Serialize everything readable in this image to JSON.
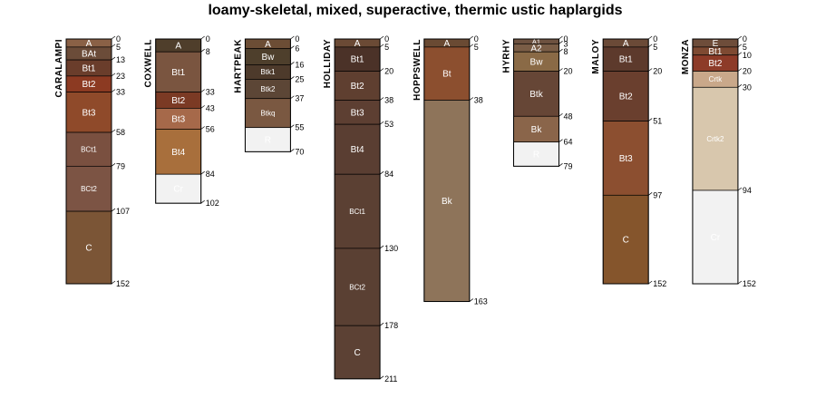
{
  "title": "loamy-skeletal, mixed, superactive, thermic ustic haplargids",
  "chart_data": {
    "type": "soil_profile_sketch",
    "title": "loamy-skeletal, mixed, superactive, thermic ustic haplargids",
    "depth_units": "cm",
    "profiles": [
      {
        "name": "CARALAMPI",
        "horizons": [
          {
            "name": "A",
            "top": 0,
            "bottom": 5,
            "color": "#8a6146"
          },
          {
            "name": "BAt",
            "top": 5,
            "bottom": 13,
            "color": "#6b4c39"
          },
          {
            "name": "Bt1",
            "top": 13,
            "bottom": 23,
            "color": "#6a3d2b"
          },
          {
            "name": "Bt2",
            "top": 23,
            "bottom": 33,
            "color": "#8c3a22"
          },
          {
            "name": "Bt3",
            "top": 33,
            "bottom": 58,
            "color": "#8f4a2a"
          },
          {
            "name": "BCt1",
            "top": 58,
            "bottom": 79,
            "color": "#7a5040"
          },
          {
            "name": "BCt2",
            "top": 79,
            "bottom": 107,
            "color": "#7c5444"
          },
          {
            "name": "C",
            "top": 107,
            "bottom": 152,
            "color": "#7b5536"
          }
        ]
      },
      {
        "name": "COXWELL",
        "horizons": [
          {
            "name": "A",
            "top": 0,
            "bottom": 8,
            "color": "#4f3e2b"
          },
          {
            "name": "Bt1",
            "top": 8,
            "bottom": 33,
            "color": "#7a5540"
          },
          {
            "name": "Bt2",
            "top": 33,
            "bottom": 43,
            "color": "#7b3a24"
          },
          {
            "name": "Bt3",
            "top": 43,
            "bottom": 56,
            "color": "#a6694a"
          },
          {
            "name": "Bt4",
            "top": 56,
            "bottom": 84,
            "color": "#a86f3c"
          },
          {
            "name": "Cr",
            "top": 84,
            "bottom": 102,
            "color": "#f2f2f2"
          }
        ]
      },
      {
        "name": "HARTPEAK",
        "horizons": [
          {
            "name": "A",
            "top": 0,
            "bottom": 6,
            "color": "#6c4d35"
          },
          {
            "name": "Bw",
            "top": 6,
            "bottom": 16,
            "color": "#4e3f2c"
          },
          {
            "name": "Btk1",
            "top": 16,
            "bottom": 25,
            "color": "#4d3a2b"
          },
          {
            "name": "Btk2",
            "top": 25,
            "bottom": 37,
            "color": "#5c4636"
          },
          {
            "name": "Btkq",
            "top": 37,
            "bottom": 55,
            "color": "#7a5841"
          },
          {
            "name": "R",
            "top": 55,
            "bottom": 70,
            "color": "#f2f2f2"
          }
        ]
      },
      {
        "name": "HOLLIDAY",
        "horizons": [
          {
            "name": "A",
            "top": 0,
            "bottom": 5,
            "color": "#6b4a35"
          },
          {
            "name": "Bt1",
            "top": 5,
            "bottom": 20,
            "color": "#4b3228"
          },
          {
            "name": "Bt2",
            "top": 20,
            "bottom": 38,
            "color": "#5f3f30"
          },
          {
            "name": "Bt3",
            "top": 38,
            "bottom": 53,
            "color": "#5d3f32"
          },
          {
            "name": "Bt4",
            "top": 53,
            "bottom": 84,
            "color": "#5a3e32"
          },
          {
            "name": "BCt1",
            "top": 84,
            "bottom": 130,
            "color": "#5b4033"
          },
          {
            "name": "BCt2",
            "top": 130,
            "bottom": 178,
            "color": "#5a4033"
          },
          {
            "name": "C",
            "top": 178,
            "bottom": 211,
            "color": "#5c4134"
          }
        ]
      },
      {
        "name": "HOPPSWELL",
        "horizons": [
          {
            "name": "A",
            "top": 0,
            "bottom": 5,
            "color": "#6a4a33"
          },
          {
            "name": "Bt",
            "top": 5,
            "bottom": 38,
            "color": "#8c4f2f"
          },
          {
            "name": "Bk",
            "top": 38,
            "bottom": 163,
            "color": "#8e745a"
          }
        ]
      },
      {
        "name": "HYRHY",
        "horizons": [
          {
            "name": "A1",
            "top": 0,
            "bottom": 3,
            "color": "#6e5240"
          },
          {
            "name": "A2",
            "top": 3,
            "bottom": 8,
            "color": "#7a5d46"
          },
          {
            "name": "Bw",
            "top": 8,
            "bottom": 20,
            "color": "#8a6a46"
          },
          {
            "name": "Btk",
            "top": 20,
            "bottom": 48,
            "color": "#664636"
          },
          {
            "name": "Bk",
            "top": 48,
            "bottom": 64,
            "color": "#8a654a"
          },
          {
            "name": "R",
            "top": 64,
            "bottom": 79,
            "color": "#f2f2f2"
          }
        ]
      },
      {
        "name": "MALOY",
        "horizons": [
          {
            "name": "A",
            "top": 0,
            "bottom": 5,
            "color": "#6b4a37"
          },
          {
            "name": "Bt1",
            "top": 5,
            "bottom": 20,
            "color": "#5d3a2c"
          },
          {
            "name": "Bt2",
            "top": 20,
            "bottom": 51,
            "color": "#6a3f2e"
          },
          {
            "name": "Bt3",
            "top": 51,
            "bottom": 97,
            "color": "#8c4f30"
          },
          {
            "name": "C",
            "top": 97,
            "bottom": 152,
            "color": "#85552c"
          }
        ]
      },
      {
        "name": "MONZA",
        "horizons": [
          {
            "name": "E",
            "top": 0,
            "bottom": 5,
            "color": "#6e4d3a"
          },
          {
            "name": "Bt1",
            "top": 5,
            "bottom": 10,
            "color": "#7e4a32"
          },
          {
            "name": "Bt2",
            "top": 10,
            "bottom": 20,
            "color": "#8d3b28"
          },
          {
            "name": "Crtk",
            "top": 20,
            "bottom": 30,
            "color": "#c9a88a"
          },
          {
            "name": "Crtk2",
            "top": 30,
            "bottom": 94,
            "color": "#d8c7ad"
          },
          {
            "name": "Cr",
            "top": 94,
            "bottom": 152,
            "color": "#f2f2f2"
          }
        ]
      }
    ]
  }
}
